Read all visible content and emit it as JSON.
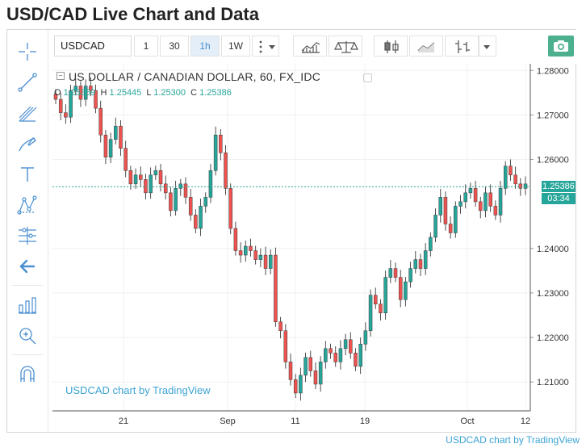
{
  "page": {
    "title": "USD/CAD Live Chart and Data"
  },
  "toolbar": {
    "symbol": "USDCAD",
    "intervals": [
      "1",
      "30",
      "1h",
      "1W"
    ],
    "active_interval": "1h"
  },
  "legend": {
    "title": "US DOLLAR / CANADIAN DOLLAR, 60, FX_IDC",
    "o_label": "O",
    "o_value": "1.25359",
    "h_label": "H",
    "h_value": "1.25445",
    "l_label": "L",
    "l_value": "1.25300",
    "c_label": "C",
    "c_value": "1.25386"
  },
  "price_tags": {
    "last_price": "1.25386",
    "countdown": "03:34"
  },
  "watermark": "USDCAD chart by TradingView",
  "credit": "USDCAD chart by TradingView",
  "colors": {
    "up": "#26a69a",
    "down": "#ef5350",
    "accent": "#4a8fd1",
    "link": "#3ca3d4"
  },
  "sidebar_icons": [
    "crosshair-icon",
    "trend-line-icon",
    "pitchfork-icon",
    "brush-icon",
    "text-icon",
    "pattern-icon",
    "prediction-icon",
    "back-arrow-icon",
    "measure-icon",
    "zoom-in-icon",
    "magnet-icon"
  ],
  "chart_data": {
    "type": "candlestick",
    "title": "US DOLLAR / CANADIAN DOLLAR, 60, FX_IDC",
    "x_ticks": [
      "21",
      "Sep",
      "11",
      "19",
      "Oct",
      "12"
    ],
    "y_ticks": [
      "1.28000",
      "1.27000",
      "1.26000",
      "1.24000",
      "1.23000",
      "1.22000",
      "1.21000"
    ],
    "ylim": [
      1.2035,
      1.2815
    ],
    "last_price": 1.25386,
    "grid": true,
    "series": [
      {
        "values": [
          1.2735,
          1.2705,
          1.2695,
          1.2755,
          1.2765,
          1.2735,
          1.2765,
          1.2755,
          1.2715,
          1.2655,
          1.2605,
          1.2645,
          1.2675,
          1.2625,
          1.2575,
          1.2545,
          1.2565,
          1.2555,
          1.2525,
          1.2565,
          1.2575,
          1.2545,
          1.2525,
          1.2485,
          1.2535,
          1.2545,
          1.2515,
          1.2475,
          1.2445,
          1.2495,
          1.2515,
          1.2575,
          1.2655,
          1.2615,
          1.2535,
          1.2445,
          1.2395,
          1.2385,
          1.2405,
          1.2395,
          1.2375,
          1.2385,
          1.2355,
          1.2385,
          1.2235,
          1.2215,
          1.2145,
          1.2105,
          1.2075,
          1.2115,
          1.2155,
          1.2125,
          1.2095,
          1.2145,
          1.2175,
          1.2165,
          1.2145,
          1.2175,
          1.2195,
          1.2165,
          1.2135,
          1.2185,
          1.2215,
          1.2295,
          1.2275,
          1.2255,
          1.2335,
          1.2355,
          1.2335,
          1.2285,
          1.2325,
          1.2355,
          1.2375,
          1.2355,
          1.2395,
          1.2425,
          1.2475,
          1.2515,
          1.2455,
          1.2435,
          1.2495,
          1.2505,
          1.2525,
          1.2535,
          1.2505,
          1.2485,
          1.2525,
          1.2495,
          1.2475,
          1.2535,
          1.2585,
          1.2565,
          1.2545,
          1.2535,
          1.2545
        ]
      }
    ]
  }
}
